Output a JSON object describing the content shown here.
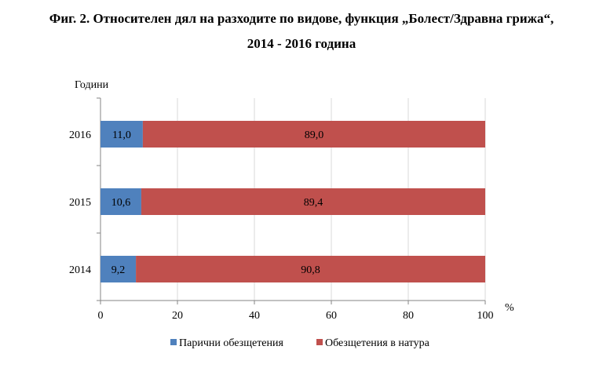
{
  "chart_data": {
    "type": "bar",
    "orientation": "horizontal",
    "stacked": true,
    "title_line1": "Фиг. 2. Относителен дял на разходите по видове, функция „Болест/Здравна грижа“,",
    "title_line2": "2014 - 2016 година",
    "ylabel": "Години",
    "xlabel": "%",
    "xlim": [
      0,
      100
    ],
    "xticks": [
      0,
      20,
      40,
      60,
      80,
      100
    ],
    "grid": true,
    "legend_position": "bottom",
    "categories": [
      "2016",
      "2015",
      "2014"
    ],
    "series": [
      {
        "name": "Парични обезщетения",
        "color": "#4F81BD",
        "values": [
          11.0,
          10.6,
          9.2
        ],
        "labels": [
          "11,0",
          "10,6",
          "9,2"
        ]
      },
      {
        "name": "Обезщетения в натура",
        "color": "#C0504D",
        "values": [
          89.0,
          89.4,
          90.8
        ],
        "labels": [
          "89,0",
          "89,4",
          "90,8"
        ]
      }
    ]
  }
}
